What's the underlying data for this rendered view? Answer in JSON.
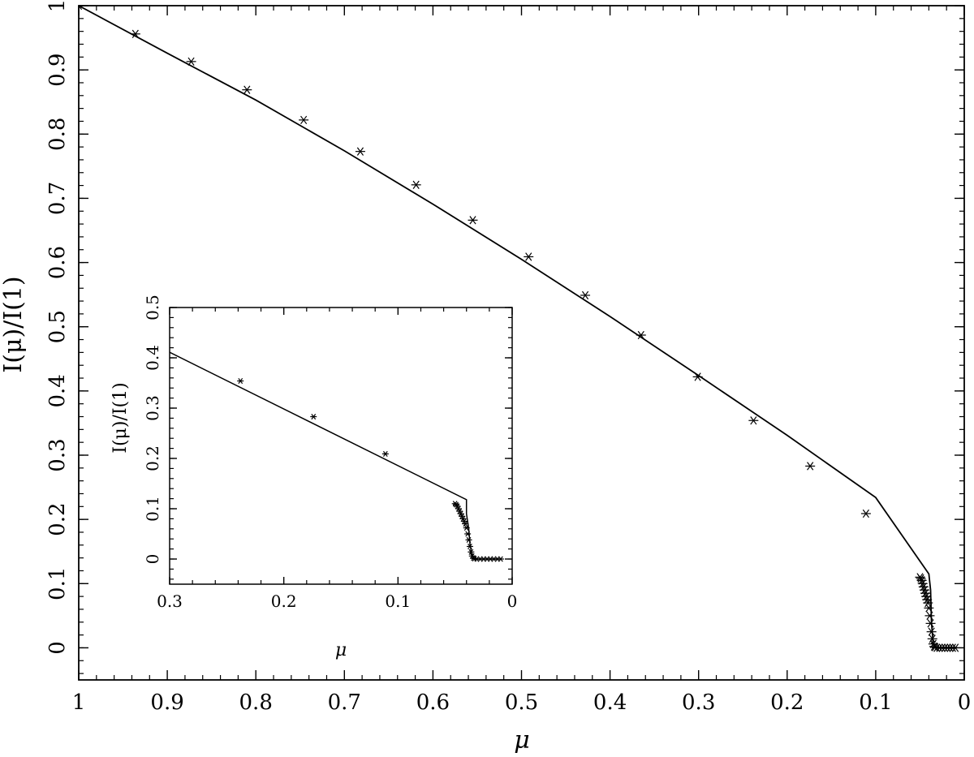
{
  "chart_data": [
    {
      "id": "main",
      "type": "line",
      "xlabel": "μ",
      "ylabel": "I(μ)/I(1)",
      "xlim": [
        1,
        0
      ],
      "ylim": [
        -0.05,
        1
      ],
      "x_ticks": [
        1,
        0.9,
        0.8,
        0.7,
        0.6,
        0.5,
        0.4,
        0.3,
        0.2,
        0.1,
        0
      ],
      "x_tick_labels": [
        "1",
        "0.9",
        "0.8",
        "0.7",
        "0.6",
        "0.5",
        "0.4",
        "0.3",
        "0.2",
        "0.1",
        "0"
      ],
      "y_ticks": [
        0,
        0.1,
        0.2,
        0.3,
        0.4,
        0.5,
        0.6,
        0.7,
        0.8,
        0.9,
        1
      ],
      "y_tick_labels": [
        "0",
        "0.1",
        "0.2",
        "0.3",
        "0.4",
        "0.5",
        "0.6",
        "0.7",
        "0.8",
        "0.9",
        "1"
      ],
      "grid": false,
      "series": [
        {
          "style": "line",
          "x": [
            1,
            0.9,
            0.8,
            0.7,
            0.6,
            0.5,
            0.4,
            0.3,
            0.2,
            0.1,
            0.04,
            0.038,
            0.037,
            0.035,
            0.032,
            0.01
          ],
          "y": [
            1,
            0.926,
            0.853,
            0.774,
            0.691,
            0.605,
            0.516,
            0.424,
            0.331,
            0.234,
            0.115,
            0.09,
            0.04,
            0.005,
            0.0,
            0.0
          ]
        },
        {
          "style": "markers",
          "marker": "asterisk",
          "x": [
            1,
            0.936,
            0.873,
            0.81,
            0.746,
            0.682,
            0.619,
            0.555,
            0.492,
            0.428,
            0.365,
            0.301,
            0.238,
            0.174,
            0.111,
            0.05,
            0.049,
            0.048,
            0.047,
            0.046,
            0.045,
            0.044,
            0.043,
            0.042,
            0.041,
            0.04,
            0.039,
            0.038,
            0.037,
            0.036,
            0.035,
            0.034,
            0.033,
            0.031,
            0.028,
            0.025,
            0.022,
            0.019,
            0.016,
            0.013,
            0.01
          ],
          "y": [
            1,
            0.956,
            0.913,
            0.869,
            0.822,
            0.773,
            0.721,
            0.666,
            0.609,
            0.549,
            0.487,
            0.422,
            0.354,
            0.283,
            0.209,
            0.11,
            0.108,
            0.105,
            0.1,
            0.095,
            0.09,
            0.085,
            0.08,
            0.075,
            0.07,
            0.062,
            0.05,
            0.038,
            0.025,
            0.014,
            0.006,
            0.002,
            0.001,
            0,
            0,
            0,
            0,
            0,
            0,
            0,
            0
          ]
        }
      ]
    },
    {
      "id": "inset",
      "type": "line",
      "xlabel": "μ",
      "ylabel": "I(μ)/I(1)",
      "xlim": [
        0.3,
        0
      ],
      "ylim": [
        -0.05,
        0.5
      ],
      "x_ticks": [
        0.3,
        0.2,
        0.1,
        0
      ],
      "x_tick_labels": [
        "0.3",
        "0.2",
        "0.1",
        "0"
      ],
      "y_ticks": [
        0,
        0.1,
        0.2,
        0.3,
        0.4,
        0.5
      ],
      "y_tick_labels": [
        "0",
        "0.1",
        "0.2",
        "0.3",
        "0.4",
        "0.5"
      ],
      "grid": false,
      "series": [
        {
          "style": "line",
          "x": [
            0.3,
            0.04,
            0.04,
            0.038,
            0.037,
            0.035,
            0.032,
            0.01
          ],
          "y": [
            0.411,
            0.118,
            0.09,
            0.06,
            0.03,
            0.005,
            0.0,
            0.0
          ]
        },
        {
          "style": "markers",
          "marker": "asterisk",
          "x": [
            0.238,
            0.174,
            0.111,
            0.05,
            0.049,
            0.048,
            0.047,
            0.046,
            0.045,
            0.044,
            0.043,
            0.042,
            0.041,
            0.04,
            0.039,
            0.038,
            0.037,
            0.036,
            0.035,
            0.034,
            0.033,
            0.031,
            0.028,
            0.025,
            0.022,
            0.019,
            0.016,
            0.013,
            0.01
          ],
          "y": [
            0.354,
            0.283,
            0.209,
            0.11,
            0.108,
            0.105,
            0.1,
            0.095,
            0.09,
            0.085,
            0.08,
            0.075,
            0.07,
            0.062,
            0.05,
            0.038,
            0.025,
            0.014,
            0.006,
            0.002,
            0.001,
            0,
            0,
            0,
            0,
            0,
            0,
            0,
            0
          ]
        }
      ]
    }
  ]
}
